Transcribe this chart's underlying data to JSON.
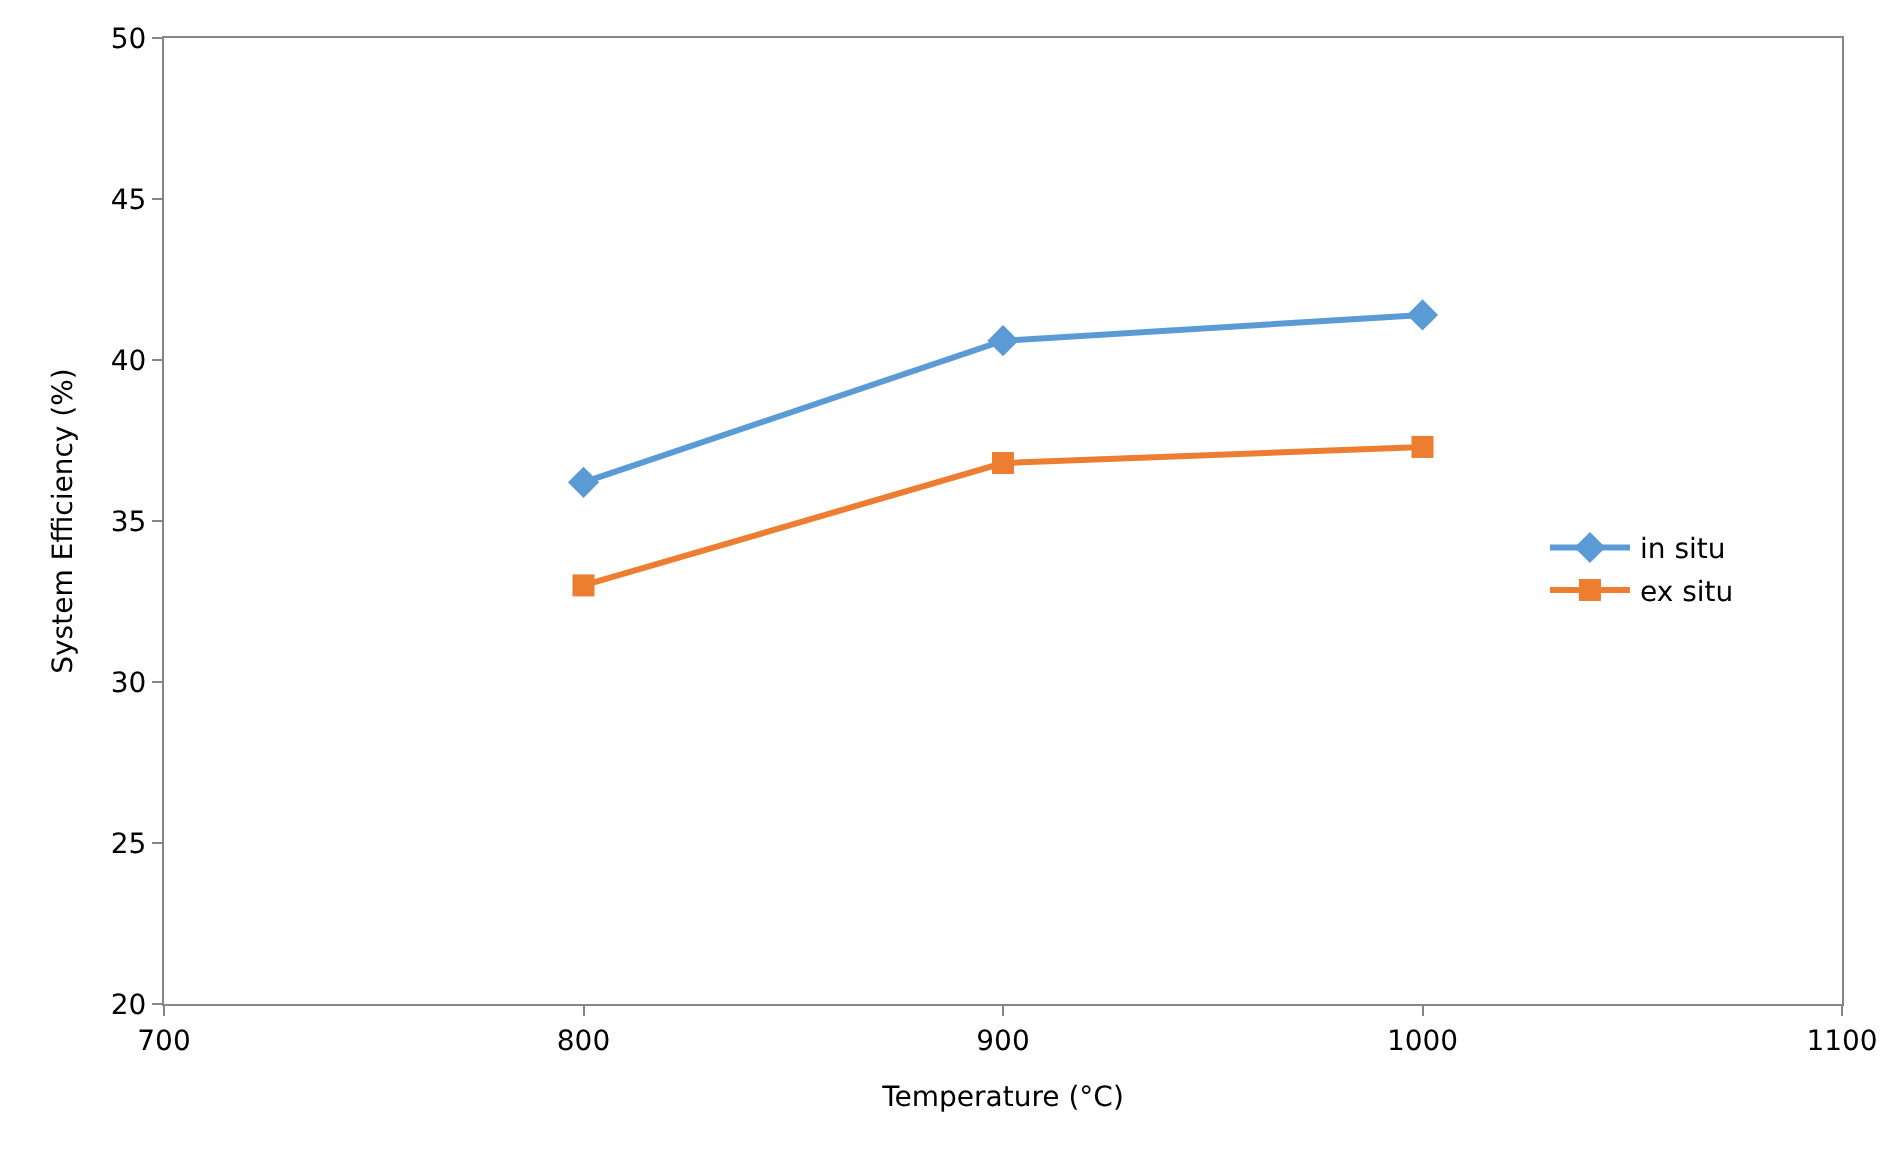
{
  "chart_data": {
    "type": "line",
    "xlabel": "Temperature (°C)",
    "ylabel": "System Efficiency (%)",
    "x": [
      800,
      900,
      1000
    ],
    "series": [
      {
        "name": "in situ",
        "color": "#5b9bd5",
        "values": [
          36.2,
          40.6,
          41.4
        ],
        "marker": "diamond"
      },
      {
        "name": "ex situ",
        "color": "#ed7d31",
        "values": [
          33.0,
          36.8,
          37.3
        ],
        "marker": "square"
      }
    ],
    "xlim": [
      700,
      1100
    ],
    "xticks": [
      700,
      800,
      900,
      1000,
      1100
    ],
    "ylim": [
      20,
      50
    ],
    "yticks": [
      20,
      25,
      30,
      35,
      40,
      45,
      50
    ],
    "legend": "right",
    "line_style": "solid"
  }
}
